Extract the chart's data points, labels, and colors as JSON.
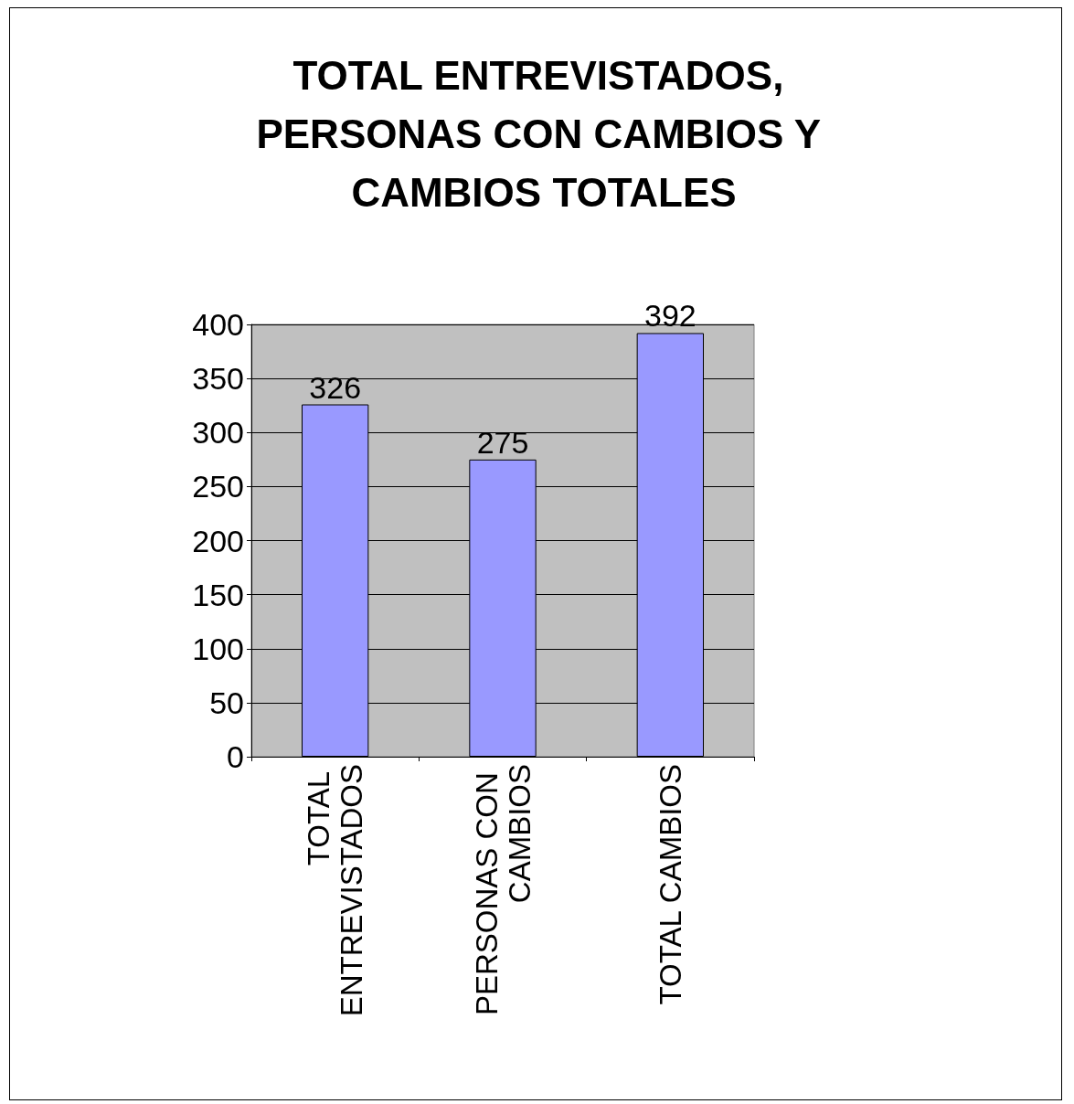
{
  "chart_data": {
    "type": "bar",
    "title": "TOTAL ENTREVISTADOS, PERSONAS CON CAMBIOS Y CAMBIOS TOTALES",
    "categories": [
      "TOTAL ENTREVISTADOS",
      "PERSONAS CON CAMBIOS",
      "TOTAL CAMBIOS"
    ],
    "values": [
      326,
      275,
      392
    ],
    "color": "#9999ff",
    "ylim": [
      0,
      400
    ],
    "yticks": [
      0,
      50,
      100,
      150,
      200,
      250,
      300,
      350,
      400
    ],
    "grid": "y",
    "data_labels": true
  }
}
